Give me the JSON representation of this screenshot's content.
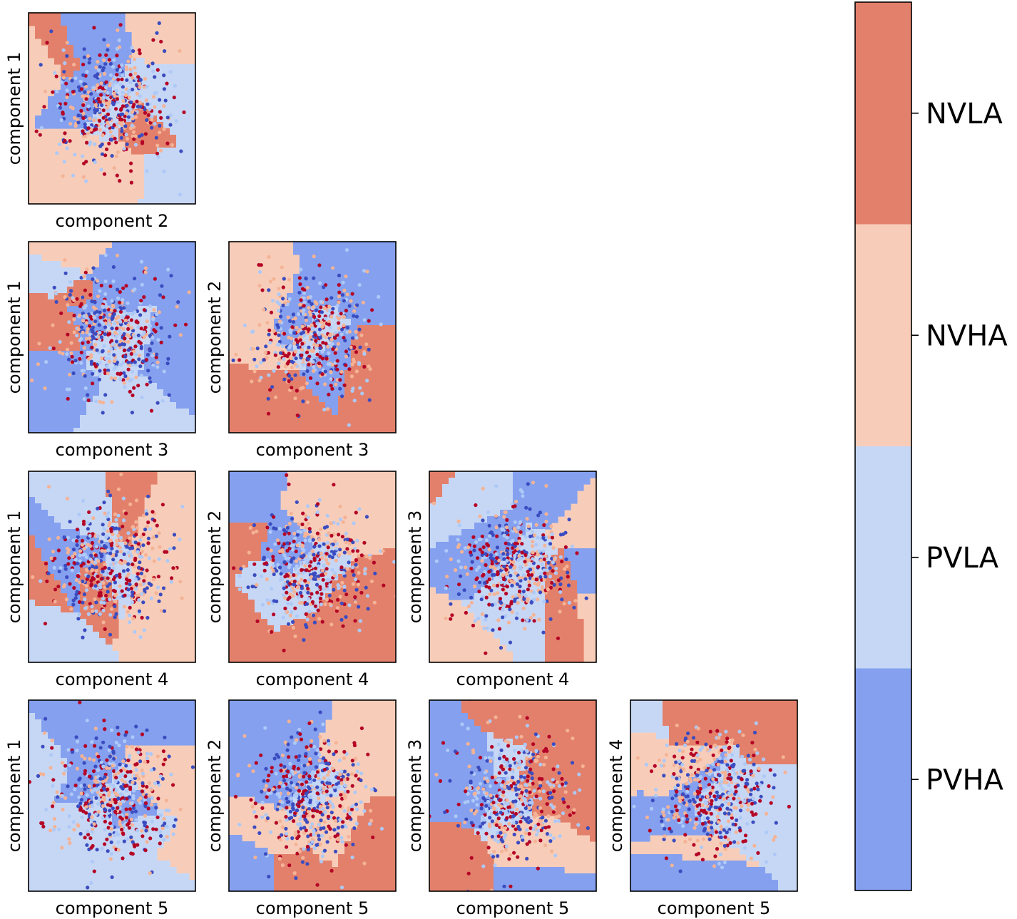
{
  "chart_data": {
    "type": "scatter",
    "layout": "lower-triangular pairwise grid",
    "panels": [
      {
        "row": 0,
        "col": 0,
        "xlabel": "component 2",
        "ylabel": "component 1"
      },
      {
        "row": 1,
        "col": 0,
        "xlabel": "component 3",
        "ylabel": "component 1"
      },
      {
        "row": 1,
        "col": 1,
        "xlabel": "component 3",
        "ylabel": "component 2"
      },
      {
        "row": 2,
        "col": 0,
        "xlabel": "component 4",
        "ylabel": "component 1"
      },
      {
        "row": 2,
        "col": 1,
        "xlabel": "component 4",
        "ylabel": "component 2"
      },
      {
        "row": 2,
        "col": 2,
        "xlabel": "component 4",
        "ylabel": "component 3"
      },
      {
        "row": 3,
        "col": 0,
        "xlabel": "component 5",
        "ylabel": "component 1"
      },
      {
        "row": 3,
        "col": 1,
        "xlabel": "component 5",
        "ylabel": "component 2"
      },
      {
        "row": 3,
        "col": 2,
        "xlabel": "component 5",
        "ylabel": "component 3"
      },
      {
        "row": 3,
        "col": 3,
        "xlabel": "component 5",
        "ylabel": "component 4"
      }
    ],
    "classes": [
      {
        "name": "NVLA",
        "region_color": "#e3806b",
        "point_color": "#b40426"
      },
      {
        "name": "NVHA",
        "region_color": "#f7cdb9",
        "point_color": "#f4b396"
      },
      {
        "name": "PVLA",
        "region_color": "#c6d7f5",
        "point_color": "#aec9f7"
      },
      {
        "name": "PVHA",
        "region_color": "#84a0ef",
        "point_color": "#3b4cc0"
      }
    ],
    "colorbar": {
      "placement": "right",
      "order_top_to_bottom": [
        "NVLA",
        "NVHA",
        "PVLA",
        "PVHA"
      ],
      "tick_labels": [
        "NVLA",
        "NVHA",
        "PVLA",
        "PVHA"
      ]
    },
    "ticks_shown": false,
    "grid": false
  }
}
